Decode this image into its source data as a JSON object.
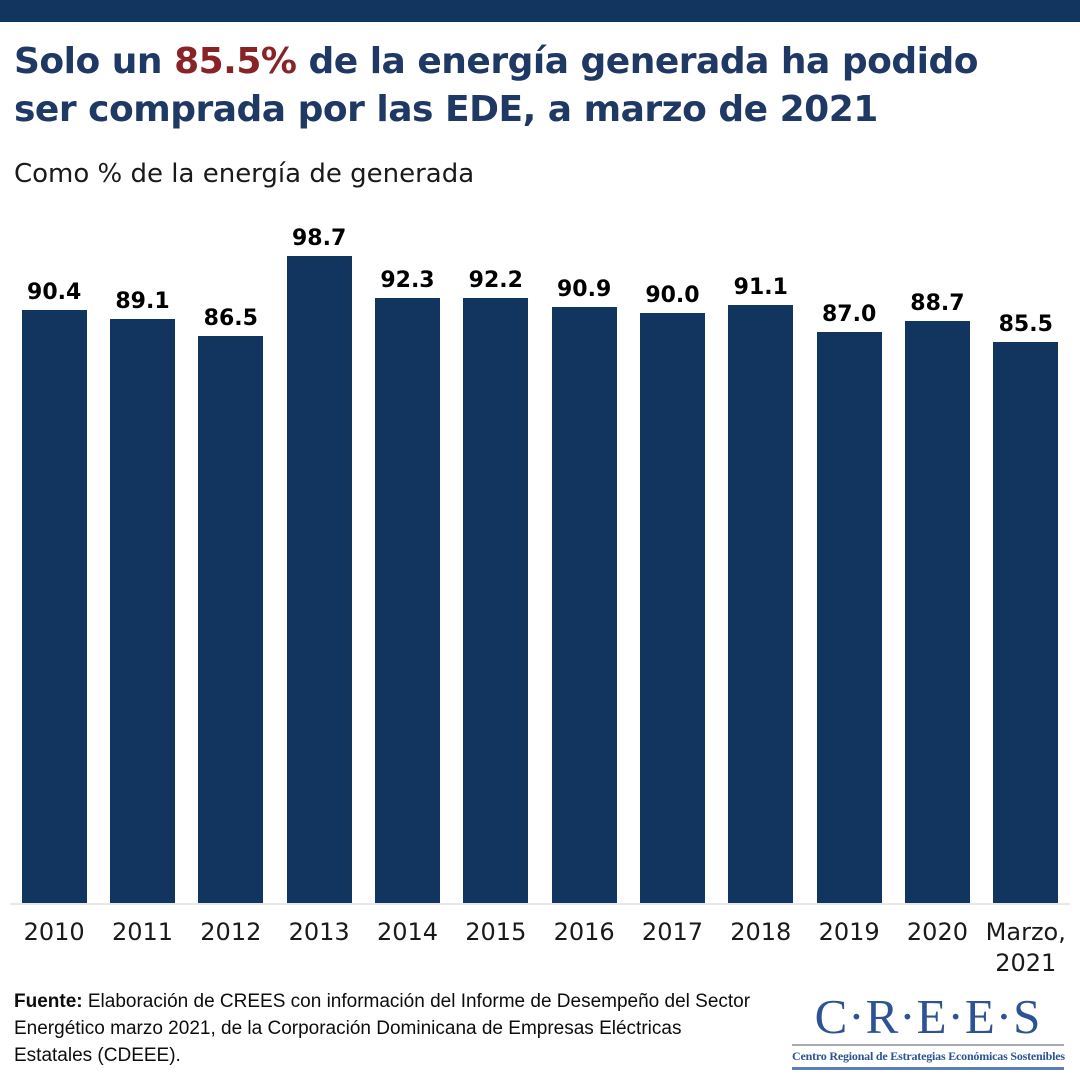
{
  "colors": {
    "band_navy": "#12355F",
    "bar_navy": "#12355F",
    "title_navy": "#1F3864",
    "highlight_red": "#882428",
    "logo_blue": "#2E5394",
    "axis_line": "#E7E7E7"
  },
  "header": {
    "title_prefix": "Solo un ",
    "title_highlight": "85.5%",
    "title_suffix": " de la energía generada ha podido ser comprada por las EDE, a marzo de 2021",
    "subtitle": "Como % de la energía de generada"
  },
  "chart_data": {
    "type": "bar",
    "title": "Solo un 85.5% de la energía generada ha podido ser comprada por las EDE, a marzo de 2021",
    "subtitle": "Como % de la energía de generada",
    "categories": [
      "2010",
      "2011",
      "2012",
      "2013",
      "2014",
      "2015",
      "2016",
      "2017",
      "2018",
      "2019",
      "2020",
      "Marzo, 2021"
    ],
    "values": [
      90.4,
      89.1,
      86.5,
      98.7,
      92.3,
      92.2,
      90.9,
      90.0,
      91.1,
      87.0,
      88.7,
      85.5
    ],
    "xlabel": "",
    "ylabel": "",
    "ylim": [
      0,
      100
    ],
    "grid": false,
    "legend": false,
    "data_labels": true,
    "bar_color": "#12355F",
    "label_color": "#000000"
  },
  "footer": {
    "source_label": "Fuente:",
    "source_text": " Elaboración de CREES con información del Informe de Desempeño del Sector Energético marzo 2021, de la Corporación Dominicana de Empresas Eléctricas Estatales (CDEEE).",
    "logo": {
      "name": "C·R·E·E·S",
      "tagline": "Centro Regional de Estrategias Económicas Sostenibles"
    }
  }
}
